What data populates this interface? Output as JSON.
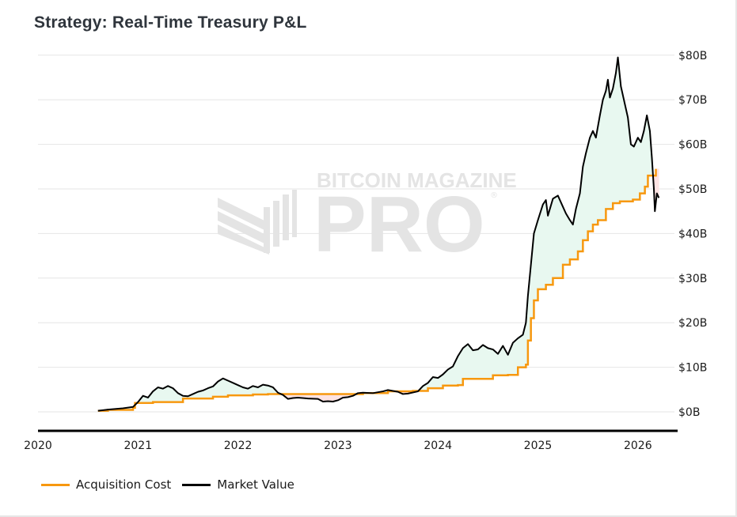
{
  "title": "Strategy: Real-Time Treasury P&L",
  "watermark": {
    "line1": "BITCOIN MAGAZINE",
    "line2": "PRO",
    "mark": "®"
  },
  "colors": {
    "acquisition": "#f7980f",
    "market": "#000000",
    "profit_fill": "#e8f8f0",
    "loss_fill": "#fde3e3",
    "grid": "#e6e6e6",
    "watermark": "#e4e4e4"
  },
  "legend": [
    {
      "label": "Acquisition Cost",
      "series": "acquisition"
    },
    {
      "label": "Market Value",
      "series": "market"
    }
  ],
  "chart_data": {
    "type": "line",
    "title": "Strategy: Real-Time Treasury P&L",
    "xlabel": "",
    "ylabel": "",
    "x_unit": "year (fractional)",
    "xlim": [
      2020,
      2026.4
    ],
    "ylim": [
      -4.5,
      82
    ],
    "grid": true,
    "legend_position": "bottom-left",
    "x_ticks": [
      {
        "value": 2020,
        "label": "2020"
      },
      {
        "value": 2021,
        "label": "2021"
      },
      {
        "value": 2022,
        "label": "2022"
      },
      {
        "value": 2023,
        "label": "2023"
      },
      {
        "value": 2024,
        "label": "2024"
      },
      {
        "value": 2025,
        "label": "2025"
      },
      {
        "value": 2026,
        "label": "2026"
      }
    ],
    "y_ticks": [
      {
        "value": 0,
        "label": "$0B"
      },
      {
        "value": 10,
        "label": "$10B"
      },
      {
        "value": 20,
        "label": "$20B"
      },
      {
        "value": 30,
        "label": "$30B"
      },
      {
        "value": 40,
        "label": "$40B"
      },
      {
        "value": 50,
        "label": "$50B"
      },
      {
        "value": 60,
        "label": "$60B"
      },
      {
        "value": 70,
        "label": "$70B"
      },
      {
        "value": 80,
        "label": "$80B"
      }
    ],
    "y_axis_position": "right",
    "series": [
      {
        "name": "Acquisition Cost",
        "key": "acquisition",
        "shape": "step",
        "points": [
          [
            2020.6,
            0.25
          ],
          [
            2020.7,
            0.45
          ],
          [
            2020.95,
            0.9
          ],
          [
            2020.97,
            2.0
          ],
          [
            2021.15,
            2.2
          ],
          [
            2021.45,
            3.0
          ],
          [
            2021.75,
            3.4
          ],
          [
            2021.9,
            3.7
          ],
          [
            2022.15,
            3.9
          ],
          [
            2022.3,
            4.0
          ],
          [
            2023.2,
            4.0
          ],
          [
            2023.25,
            4.2
          ],
          [
            2023.5,
            4.6
          ],
          [
            2023.75,
            4.7
          ],
          [
            2023.9,
            5.3
          ],
          [
            2024.05,
            5.9
          ],
          [
            2024.2,
            6.0
          ],
          [
            2024.25,
            7.4
          ],
          [
            2024.55,
            8.2
          ],
          [
            2024.7,
            8.3
          ],
          [
            2024.8,
            10.0
          ],
          [
            2024.88,
            10.6
          ],
          [
            2024.9,
            16.0
          ],
          [
            2024.93,
            21.0
          ],
          [
            2024.96,
            25.0
          ],
          [
            2025.0,
            27.5
          ],
          [
            2025.08,
            28.5
          ],
          [
            2025.15,
            30.0
          ],
          [
            2025.25,
            33.0
          ],
          [
            2025.32,
            34.2
          ],
          [
            2025.4,
            36.0
          ],
          [
            2025.45,
            38.5
          ],
          [
            2025.5,
            40.5
          ],
          [
            2025.55,
            42.0
          ],
          [
            2025.6,
            43.0
          ],
          [
            2025.68,
            45.5
          ],
          [
            2025.75,
            46.8
          ],
          [
            2025.82,
            47.2
          ],
          [
            2025.95,
            47.6
          ],
          [
            2026.02,
            49.0
          ],
          [
            2026.07,
            50.5
          ],
          [
            2026.1,
            53.0
          ],
          [
            2026.18,
            54.5
          ]
        ]
      },
      {
        "name": "Market Value",
        "key": "market",
        "shape": "line",
        "points": [
          [
            2020.6,
            0.25
          ],
          [
            2020.7,
            0.5
          ],
          [
            2020.85,
            0.8
          ],
          [
            2020.95,
            1.1
          ],
          [
            2021.0,
            2.2
          ],
          [
            2021.05,
            3.6
          ],
          [
            2021.1,
            3.2
          ],
          [
            2021.15,
            4.6
          ],
          [
            2021.2,
            5.5
          ],
          [
            2021.25,
            5.2
          ],
          [
            2021.3,
            5.8
          ],
          [
            2021.35,
            5.3
          ],
          [
            2021.4,
            4.2
          ],
          [
            2021.45,
            3.6
          ],
          [
            2021.5,
            3.5
          ],
          [
            2021.55,
            4.0
          ],
          [
            2021.6,
            4.5
          ],
          [
            2021.65,
            4.8
          ],
          [
            2021.7,
            5.3
          ],
          [
            2021.75,
            5.7
          ],
          [
            2021.8,
            6.8
          ],
          [
            2021.85,
            7.5
          ],
          [
            2021.9,
            7.0
          ],
          [
            2021.95,
            6.5
          ],
          [
            2022.0,
            6.0
          ],
          [
            2022.05,
            5.5
          ],
          [
            2022.1,
            5.2
          ],
          [
            2022.15,
            5.8
          ],
          [
            2022.2,
            5.5
          ],
          [
            2022.25,
            6.1
          ],
          [
            2022.3,
            5.9
          ],
          [
            2022.35,
            5.5
          ],
          [
            2022.4,
            4.3
          ],
          [
            2022.45,
            3.8
          ],
          [
            2022.5,
            2.9
          ],
          [
            2022.55,
            3.1
          ],
          [
            2022.6,
            3.2
          ],
          [
            2022.7,
            3.0
          ],
          [
            2022.8,
            2.9
          ],
          [
            2022.85,
            2.3
          ],
          [
            2022.9,
            2.4
          ],
          [
            2022.95,
            2.3
          ],
          [
            2023.0,
            2.6
          ],
          [
            2023.05,
            3.2
          ],
          [
            2023.1,
            3.3
          ],
          [
            2023.15,
            3.6
          ],
          [
            2023.2,
            4.2
          ],
          [
            2023.25,
            4.3
          ],
          [
            2023.35,
            4.2
          ],
          [
            2023.45,
            4.6
          ],
          [
            2023.5,
            4.9
          ],
          [
            2023.6,
            4.5
          ],
          [
            2023.65,
            4.0
          ],
          [
            2023.7,
            4.1
          ],
          [
            2023.8,
            4.6
          ],
          [
            2023.85,
            5.8
          ],
          [
            2023.9,
            6.5
          ],
          [
            2023.95,
            7.8
          ],
          [
            2024.0,
            7.6
          ],
          [
            2024.05,
            8.4
          ],
          [
            2024.1,
            9.5
          ],
          [
            2024.15,
            10.2
          ],
          [
            2024.2,
            12.5
          ],
          [
            2024.25,
            14.3
          ],
          [
            2024.3,
            15.2
          ],
          [
            2024.35,
            13.8
          ],
          [
            2024.4,
            14.0
          ],
          [
            2024.45,
            15.0
          ],
          [
            2024.5,
            14.3
          ],
          [
            2024.55,
            14.0
          ],
          [
            2024.6,
            13.0
          ],
          [
            2024.65,
            14.8
          ],
          [
            2024.7,
            12.8
          ],
          [
            2024.75,
            15.5
          ],
          [
            2024.8,
            16.5
          ],
          [
            2024.85,
            17.3
          ],
          [
            2024.88,
            20.0
          ],
          [
            2024.9,
            26.0
          ],
          [
            2024.93,
            33.0
          ],
          [
            2024.96,
            40.0
          ],
          [
            2025.0,
            43.0
          ],
          [
            2025.05,
            46.5
          ],
          [
            2025.08,
            47.5
          ],
          [
            2025.1,
            44.0
          ],
          [
            2025.15,
            47.8
          ],
          [
            2025.2,
            48.5
          ],
          [
            2025.25,
            46.0
          ],
          [
            2025.28,
            44.5
          ],
          [
            2025.32,
            43.0
          ],
          [
            2025.35,
            42.0
          ],
          [
            2025.38,
            45.5
          ],
          [
            2025.42,
            49.0
          ],
          [
            2025.45,
            55.0
          ],
          [
            2025.48,
            58.0
          ],
          [
            2025.52,
            61.5
          ],
          [
            2025.55,
            63.0
          ],
          [
            2025.58,
            61.5
          ],
          [
            2025.62,
            66.5
          ],
          [
            2025.65,
            70.0
          ],
          [
            2025.68,
            72.0
          ],
          [
            2025.7,
            74.5
          ],
          [
            2025.72,
            70.5
          ],
          [
            2025.75,
            72.5
          ],
          [
            2025.78,
            76.0
          ],
          [
            2025.8,
            79.5
          ],
          [
            2025.83,
            73.0
          ],
          [
            2025.86,
            70.0
          ],
          [
            2025.9,
            66.0
          ],
          [
            2025.93,
            60.0
          ],
          [
            2025.96,
            59.5
          ],
          [
            2026.0,
            61.5
          ],
          [
            2026.03,
            60.5
          ],
          [
            2026.06,
            63.0
          ],
          [
            2026.09,
            66.5
          ],
          [
            2026.12,
            63.0
          ],
          [
            2026.14,
            57.0
          ],
          [
            2026.16,
            50.0
          ],
          [
            2026.17,
            45.0
          ],
          [
            2026.19,
            49.0
          ],
          [
            2026.21,
            48.0
          ]
        ]
      }
    ]
  }
}
